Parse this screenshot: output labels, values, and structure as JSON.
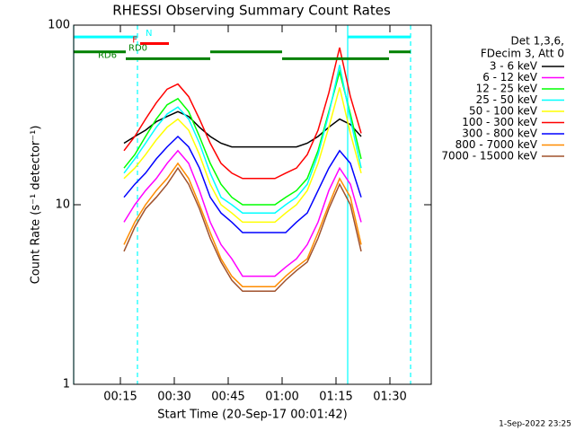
{
  "chart_data": {
    "type": "line",
    "title": "RHESSI Observing Summary Count Rates",
    "x_label": "Start Time (20-Sep-17 00:01:42)",
    "y_label": "Count Rate (s⁻¹ detector⁻¹)",
    "footer": "1-Sep-2022 23:25",
    "legend_header": [
      "Det 1,3,6,",
      "FDecim 3, Att 0"
    ],
    "log_y": true,
    "xlim": [
      2,
      101.5
    ],
    "xticks": [
      {
        "value": 15,
        "label": "00:15"
      },
      {
        "value": 30,
        "label": "00:30"
      },
      {
        "value": 45,
        "label": "00:45"
      },
      {
        "value": 60,
        "label": "01:00"
      },
      {
        "value": 75,
        "label": "01:15"
      },
      {
        "value": 90,
        "label": "01:30"
      }
    ],
    "ylim": [
      1,
      100
    ],
    "yticks": [
      1,
      10,
      100
    ],
    "x": [
      16,
      19,
      22,
      25,
      28,
      31,
      34,
      37,
      40,
      43,
      46,
      49,
      52,
      55,
      58,
      61,
      64,
      67,
      70,
      73,
      76,
      79,
      82
    ],
    "series": [
      {
        "name": "3 - 6 keV",
        "color": "#000000",
        "values": [
          22,
          24,
          26,
          29,
          31,
          33,
          31,
          27,
          24,
          22,
          21,
          21,
          21,
          21,
          21,
          21,
          21,
          22,
          24,
          27,
          30,
          28,
          24
        ]
      },
      {
        "name": "6 - 12 keV",
        "color": "#ff00ff",
        "values": [
          8,
          10,
          12,
          14,
          17,
          20,
          17,
          12,
          8,
          6,
          5,
          4,
          4,
          4,
          4,
          4.5,
          5,
          6,
          8,
          12,
          16,
          13,
          8
        ]
      },
      {
        "name": "12 - 25 keV",
        "color": "#00ff00",
        "values": [
          16,
          19,
          24,
          30,
          36,
          39,
          33,
          24,
          17,
          13,
          11,
          10,
          10,
          10,
          10,
          11,
          12,
          14,
          20,
          33,
          55,
          32,
          18
        ]
      },
      {
        "name": "25 - 50 keV",
        "color": "#00ffff",
        "values": [
          15,
          18,
          22,
          27,
          32,
          35,
          30,
          22,
          15,
          11,
          10,
          9,
          9,
          9,
          9,
          10,
          11,
          13,
          19,
          32,
          60,
          30,
          16
        ]
      },
      {
        "name": "50 - 100 keV",
        "color": "#ffff00",
        "values": [
          14,
          16,
          19,
          23,
          27,
          30,
          26,
          19,
          13,
          10,
          9,
          8,
          8,
          8,
          8,
          9,
          10,
          12,
          17,
          27,
          45,
          25,
          15
        ]
      },
      {
        "name": "100 - 300 keV",
        "color": "#ff0000",
        "values": [
          20,
          24,
          30,
          37,
          44,
          47,
          40,
          30,
          22,
          17,
          15,
          14,
          14,
          14,
          14,
          15,
          16,
          19,
          26,
          42,
          75,
          40,
          25
        ]
      },
      {
        "name": "300 - 800 keV",
        "color": "#0000ff",
        "values": [
          11,
          13,
          15,
          18,
          21,
          24,
          21,
          16,
          11,
          9,
          8,
          7,
          7,
          7,
          7,
          7,
          8,
          9,
          12,
          16,
          20,
          17,
          11
        ]
      },
      {
        "name": "800 - 7000 keV",
        "color": "#ff8c00",
        "values": [
          6,
          8,
          10,
          12,
          14,
          17,
          14,
          10,
          7,
          5,
          4,
          3.5,
          3.5,
          3.5,
          3.5,
          4,
          4.5,
          5,
          7,
          10,
          14,
          11,
          6
        ]
      },
      {
        "name": "7000 - 15000 keV",
        "color": "#a0522d",
        "values": [
          5.5,
          7.5,
          9.5,
          11,
          13,
          16,
          13,
          9.5,
          6.5,
          4.8,
          3.8,
          3.3,
          3.3,
          3.3,
          3.3,
          3.8,
          4.3,
          4.8,
          6.5,
          9.5,
          13,
          10,
          5.5
        ]
      }
    ],
    "flags": [
      {
        "label": "N",
        "color": "#00ffff",
        "y": 86,
        "intervals": [
          [
            2,
            19.75
          ],
          [
            78.25,
            95.75
          ]
        ]
      },
      {
        "label": "F",
        "color": "#ff0000",
        "y": 79,
        "intervals": [
          [
            20.5,
            28.5
          ]
        ]
      },
      {
        "label": "RD0",
        "color": "#008000",
        "y": 71,
        "intervals": [
          [
            2,
            16.5
          ],
          [
            40,
            60
          ],
          [
            89.75,
            95.75
          ]
        ]
      },
      {
        "label": "RD6",
        "color": "#008000",
        "y": 65,
        "intervals": [
          [
            16.5,
            40
          ],
          [
            60,
            89.75
          ]
        ]
      }
    ],
    "vlines": [
      {
        "x": 2,
        "color": "#00ffff",
        "dashed": false
      },
      {
        "x": 19.75,
        "color": "#00ffff",
        "dashed": true
      },
      {
        "x": 78.25,
        "color": "#00ffff",
        "dashed": false
      },
      {
        "x": 95.75,
        "color": "#00ffff",
        "dashed": true
      }
    ]
  }
}
